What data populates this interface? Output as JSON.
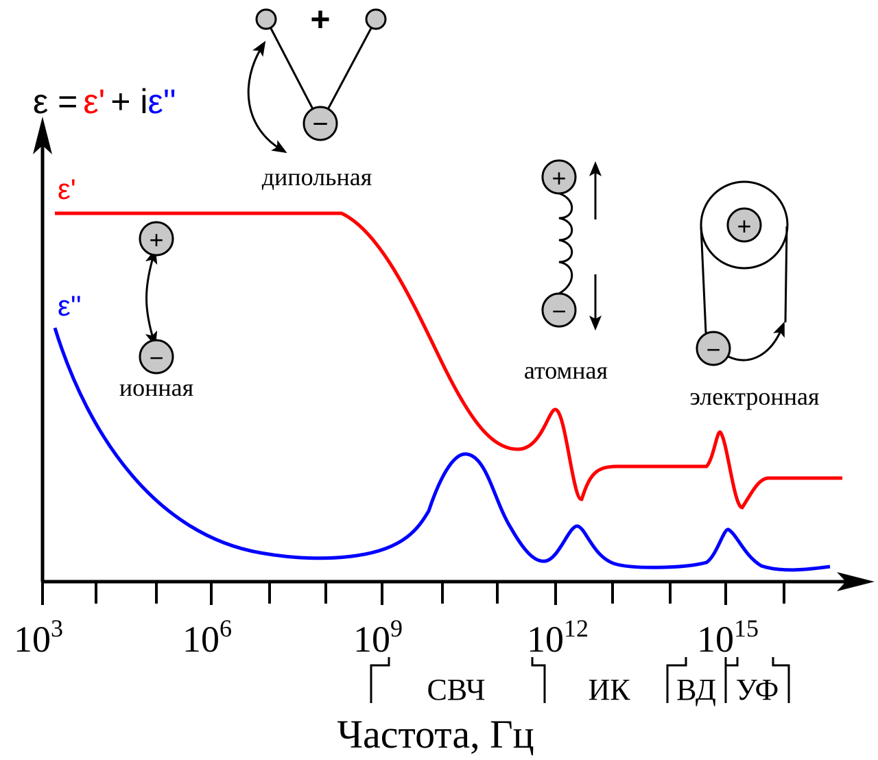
{
  "formula": [
    {
      "text": "ε =",
      "color": "#000000"
    },
    {
      "text": "ε'",
      "color": "#ff0000"
    },
    {
      "text": "+ i",
      "color": "#000000"
    },
    {
      "text": "ε''",
      "color": "#0000ff"
    }
  ],
  "curve_labels": [
    {
      "text": "ε'",
      "color": "#ff0000"
    },
    {
      "text": "ε''",
      "color": "#0000ff"
    }
  ],
  "mechanisms": [
    "дипольная",
    "ионная",
    "атомная",
    "электронная"
  ],
  "charges": {
    "plus": "+",
    "minus": "−"
  },
  "xticks": [
    {
      "base": "10",
      "exp": "3"
    },
    {
      "base": "10",
      "exp": "6"
    },
    {
      "base": "10",
      "exp": "9"
    },
    {
      "base": "10",
      "exp": "12"
    },
    {
      "base": "10",
      "exp": "15"
    }
  ],
  "bands": [
    "СВЧ",
    "ИК",
    "ВД",
    "УФ"
  ],
  "xlabel": "Частота, Гц"
}
